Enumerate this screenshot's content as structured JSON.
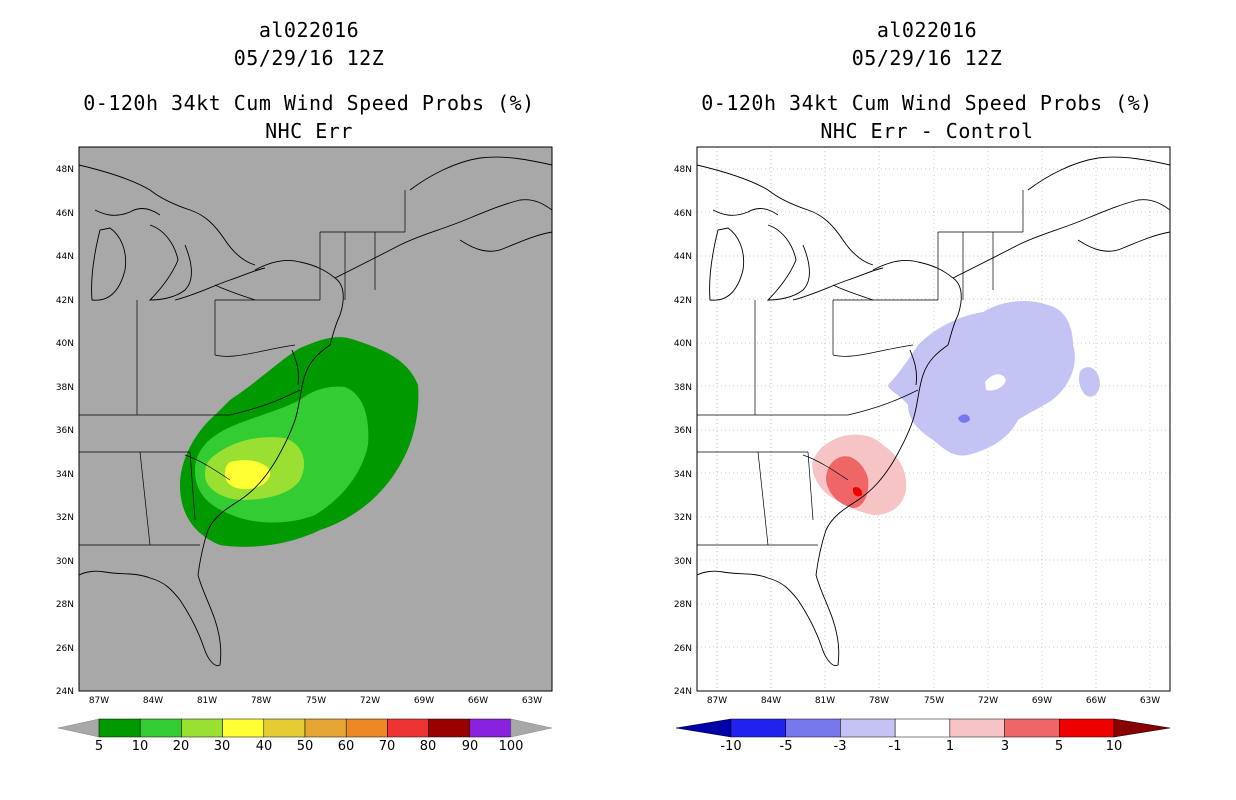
{
  "left": {
    "title_line1": "al022016",
    "title_line2": "05/29/16 12Z",
    "title_line3": "0-120h 34kt Cum Wind Speed Probs (%)",
    "title_line4": "NHC Err",
    "background_color": "#a8a8a8",
    "colorbar": {
      "labels": [
        "5",
        "10",
        "20",
        "30",
        "40",
        "50",
        "60",
        "70",
        "80",
        "90",
        "100"
      ],
      "colors": [
        "#009900",
        "#33cc33",
        "#99e033",
        "#ffff33",
        "#e6cc33",
        "#e6a633",
        "#ee8822",
        "#ee3333",
        "#990000",
        "#8822dd"
      ]
    }
  },
  "right": {
    "title_line1": "al022016",
    "title_line2": "05/29/16 12Z",
    "title_line3": "0-120h 34kt Cum Wind Speed Probs (%)",
    "title_line4": "NHC Err - Control",
    "background_color": "#ffffff",
    "colorbar": {
      "labels": [
        "-10",
        "-5",
        "-3",
        "-1",
        "1",
        "3",
        "5",
        "10"
      ],
      "colors": [
        "#0000aa",
        "#2222ee",
        "#7777ee",
        "#c4c4f4",
        "#ffffff",
        "#f6c4c4",
        "#ee6666",
        "#ee0000",
        "#880000"
      ]
    }
  },
  "axes": {
    "lat_labels": [
      "48N",
      "46N",
      "44N",
      "42N",
      "40N",
      "38N",
      "36N",
      "34N",
      "32N",
      "30N",
      "28N",
      "26N",
      "24N"
    ],
    "lon_labels": [
      "87W",
      "84W",
      "81W",
      "78W",
      "75W",
      "72W",
      "69W",
      "66W",
      "63W"
    ]
  },
  "contour_legend": {
    "left_levels": [
      "5-10",
      "10-20",
      "20-30",
      "30-40"
    ],
    "right_levels": [
      "-3 to -1",
      "-5 to -3",
      "1 to 3",
      "3 to 5",
      "5 to 10"
    ]
  }
}
